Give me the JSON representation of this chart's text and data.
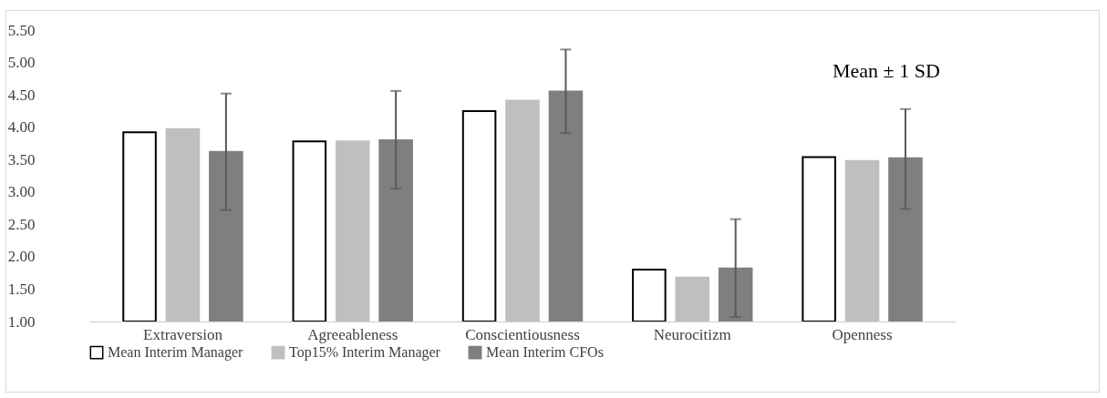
{
  "chart_data": {
    "type": "bar",
    "categories": [
      "Extraversion",
      "Agreeableness",
      "Conscientiousness",
      "Neurocitizm",
      "Openness"
    ],
    "series": [
      {
        "name": "Mean Interim Manager",
        "color": "#ffffff",
        "values": [
          3.92,
          3.78,
          4.25,
          1.8,
          3.54
        ]
      },
      {
        "name": "Top15% Interim Manager",
        "color": "#bfbfbf",
        "values": [
          3.97,
          3.78,
          4.41,
          1.68,
          3.48
        ]
      },
      {
        "name": "Mean Interim CFOs",
        "color": "#7f7f7f",
        "values": [
          3.62,
          3.8,
          4.55,
          1.82,
          3.52
        ],
        "errors": [
          [
            2.72,
            4.52
          ],
          [
            3.05,
            4.56
          ],
          [
            3.91,
            5.2
          ],
          [
            1.07,
            2.58
          ],
          [
            2.74,
            4.28
          ]
        ]
      }
    ],
    "ylim": [
      1,
      5.5
    ],
    "yticks": [
      {
        "value": 1,
        "label": "1.00"
      },
      {
        "value": 1.5,
        "label": "1.50"
      },
      {
        "value": 2,
        "label": "2.00"
      },
      {
        "value": 2.5,
        "label": "2.50"
      },
      {
        "value": 3,
        "label": "3.00"
      },
      {
        "value": 3.5,
        "label": "3.50"
      },
      {
        "value": 4,
        "label": "4.00"
      },
      {
        "value": 4.5,
        "label": "4.50"
      },
      {
        "value": 5,
        "label": "5.00"
      },
      {
        "value": 5.5,
        "label": "5.50"
      }
    ],
    "annotations": [
      "Mean ± 1 SD"
    ],
    "grid": false,
    "legend": "bottom"
  }
}
